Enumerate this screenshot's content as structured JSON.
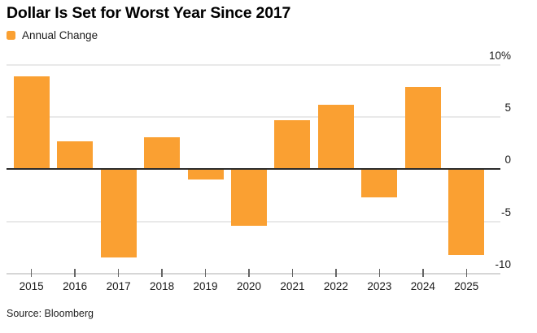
{
  "header": {
    "title": "Dollar Is Set for Worst Year Since 2017",
    "legend_label": "Annual Change"
  },
  "chart_data": {
    "type": "bar",
    "title": "Dollar Is Set for Worst Year Since 2017",
    "series_name": "Annual Change",
    "categories": [
      "2015",
      "2016",
      "2017",
      "2018",
      "2019",
      "2020",
      "2021",
      "2022",
      "2023",
      "2024",
      "2025"
    ],
    "values": [
      8.9,
      2.7,
      -8.5,
      3.1,
      -1.0,
      -5.4,
      4.7,
      6.2,
      -2.7,
      7.9,
      -8.2
    ],
    "xlabel": "",
    "ylabel": "",
    "ylim": [
      -10,
      10
    ],
    "yticks": [
      {
        "value": 10,
        "label": "10%"
      },
      {
        "value": 5,
        "label": "5"
      },
      {
        "value": 0,
        "label": "0"
      },
      {
        "value": -5,
        "label": "-5"
      },
      {
        "value": -10,
        "label": "-10"
      }
    ],
    "grid": "horizontal",
    "legend_position": "top-left",
    "bar_color": "#faa032",
    "zero_line_color": "#2b2b2b",
    "grid_color": "#e9e9e9",
    "unit": "percent"
  },
  "footer": {
    "source": "Source: Bloomberg"
  }
}
